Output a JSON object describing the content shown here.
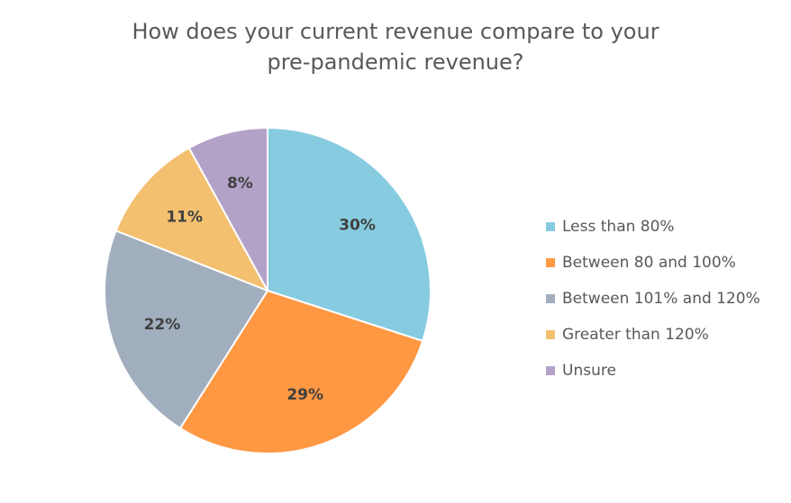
{
  "chart_data": {
    "type": "pie",
    "title_line1": "How does your current revenue compare to your",
    "title_line2": "pre-pandemic revenue?",
    "slices": [
      {
        "label": "Less than 80%",
        "value": 30,
        "display": "30%",
        "color": "#87CBE0"
      },
      {
        "label": "Between 80 and 100%",
        "value": 29,
        "display": "29%",
        "color": "#FF9843"
      },
      {
        "label": "Between 101% and 120%",
        "value": 22,
        "display": "22%",
        "color": "#A1AEBD"
      },
      {
        "label": "Greater than 120%",
        "value": 11,
        "display": "11%",
        "color": "#F3C070"
      },
      {
        "label": "Unsure",
        "value": 8,
        "display": "8%",
        "color": "#B3A2C8"
      }
    ],
    "legend_position": "right"
  }
}
